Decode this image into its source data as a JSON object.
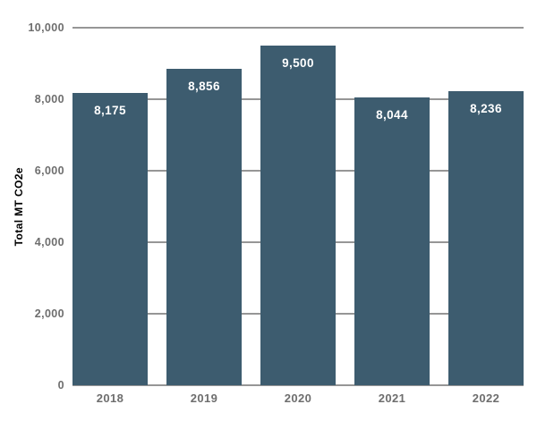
{
  "chart_data": {
    "type": "bar",
    "title": "",
    "categories": [
      "2018",
      "2019",
      "2020",
      "2021",
      "2022"
    ],
    "values": [
      8175,
      8856,
      9500,
      8044,
      8236
    ],
    "value_labels": [
      "8,175",
      "8,856",
      "9,500",
      "8,044",
      "8,236"
    ],
    "xlabel": "",
    "ylabel": "Total MT CO2e",
    "ylim": [
      0,
      10000
    ],
    "yticks": [
      {
        "value": 0,
        "label": "0"
      },
      {
        "value": 2000,
        "label": "2,000"
      },
      {
        "value": 4000,
        "label": "4,000"
      },
      {
        "value": 6000,
        "label": "6,000"
      },
      {
        "value": 8000,
        "label": "8,000"
      },
      {
        "value": 10000,
        "label": "10,000"
      }
    ],
    "grid": "horizontal",
    "legend": "none",
    "value_label_position": "inside-top",
    "colors": {
      "bar": "#3d5c6f",
      "gridline": "#969696",
      "tick_text": "#6e6e6e",
      "value_text": "#ffffff",
      "background": "#ffffff"
    }
  }
}
